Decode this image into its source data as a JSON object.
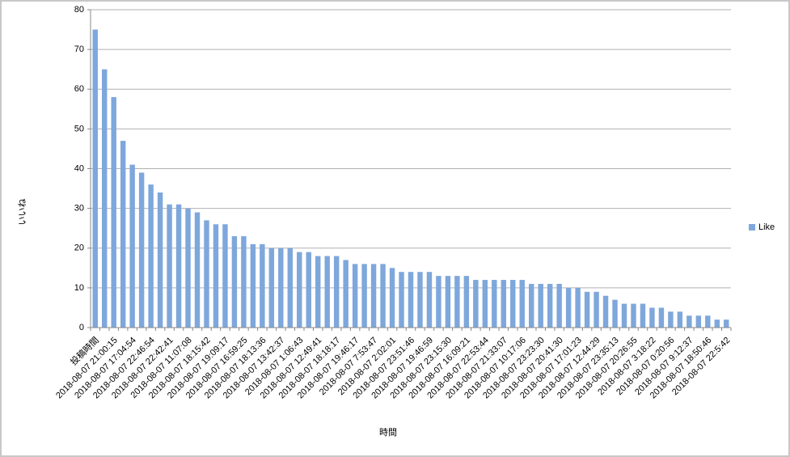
{
  "chart_data": {
    "type": "bar",
    "x_label": "時間",
    "y_label": "いいね",
    "categories": [
      "投稿時間",
      null,
      "2018-08-07 21:00:15",
      null,
      "2018-08-07 17:04:54",
      null,
      "2018-08-07 22:46:54",
      null,
      "2018-08-07 22:42:41",
      null,
      "2018-08-07 11:07:08",
      null,
      "2018-08-07 18:15:42",
      null,
      "2018-08-07 19:09:17",
      null,
      "2018-08-07 16:59:25",
      null,
      "2018-08-07 18:13:36",
      null,
      "2018-08-07 13:42:37",
      null,
      "2018-08-07 1:06:43",
      null,
      "2018-08-07 12:49:41",
      null,
      "2018-08-07 18:18:17",
      null,
      "2018-08-07 19:46:17",
      null,
      "2018-08-07 7:53:47",
      null,
      "2018-08-07 2:02:01",
      null,
      "2018-08-07 23:51:46",
      null,
      "2018-08-07 19:46:59",
      null,
      "2018-08-07 23:15:30",
      null,
      "2018-08-07 16:09:21",
      null,
      "2018-08-07 22:53:44",
      null,
      "2018-08-07 21:33:07",
      null,
      "2018-08-07 10:17:06",
      null,
      "2018-08-07 23:23:30",
      null,
      "2018-08-07 20:41:30",
      null,
      "2018-08-07 17:01:23",
      null,
      "2018-08-07 12:44:29",
      null,
      "2018-08-07 23:35:13",
      null,
      "2018-08-07 20:26:55",
      null,
      "2018-08-07 3:18:22",
      null,
      "2018-08-07 0:20:56",
      null,
      "2018-08-07 9:12:37",
      null,
      "2018-08-07 18:50:46",
      null,
      "2018-08-07 22:5:42"
    ],
    "series": [
      {
        "name": "Like",
        "color": "#7ea7dc",
        "values": [
          75,
          65,
          58,
          47,
          41,
          39,
          36,
          34,
          31,
          31,
          30,
          29,
          27,
          26,
          26,
          23,
          23,
          21,
          21,
          20,
          20,
          20,
          19,
          19,
          18,
          18,
          18,
          17,
          16,
          16,
          16,
          16,
          15,
          14,
          14,
          14,
          14,
          13,
          13,
          13,
          13,
          12,
          12,
          12,
          12,
          12,
          12,
          11,
          11,
          11,
          11,
          10,
          10,
          9,
          9,
          8,
          7,
          6,
          6,
          6,
          5,
          5,
          4,
          4,
          3,
          3,
          3,
          2,
          2
        ]
      }
    ],
    "ylim": [
      0,
      80
    ],
    "yticks": [
      0,
      10,
      20,
      30,
      40,
      50,
      60,
      70,
      80
    ],
    "grid": true,
    "legend": "right"
  }
}
